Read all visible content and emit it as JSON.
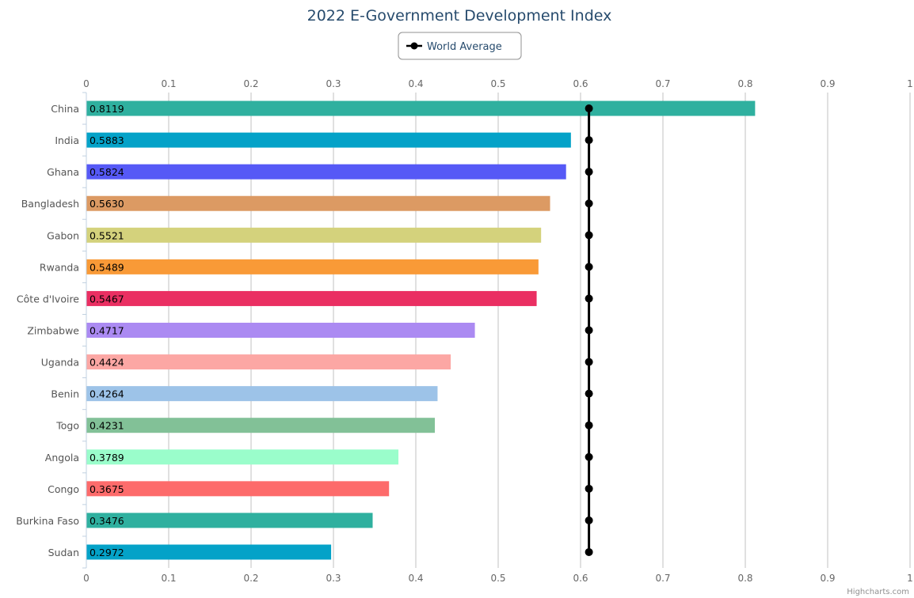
{
  "chart_data": {
    "type": "bar",
    "title": "2022 E-Government Development Index",
    "categories": [
      "China",
      "India",
      "Ghana",
      "Bangladesh",
      "Gabon",
      "Rwanda",
      "Côte d'Ivoire",
      "Zimbabwe",
      "Uganda",
      "Benin",
      "Togo",
      "Angola",
      "Congo",
      "Burkina Faso",
      "Sudan"
    ],
    "values": [
      0.8119,
      0.5883,
      0.5824,
      0.563,
      0.5521,
      0.5489,
      0.5467,
      0.4717,
      0.4424,
      0.4264,
      0.4231,
      0.3789,
      0.3675,
      0.3476,
      0.2972
    ],
    "data_labels": [
      "0.8119",
      "0.5883",
      "0.5824",
      "0.5630",
      "0.5521",
      "0.5489",
      "0.5467",
      "0.4717",
      "0.4424",
      "0.4264",
      "0.4231",
      "0.3789",
      "0.3675",
      "0.3476",
      "0.2972"
    ],
    "bar_colors": [
      "#2fb09f",
      "#04a2c8",
      "#5659f6",
      "#dc9a63",
      "#d4d27c",
      "#f99a37",
      "#ea2f62",
      "#ab8af2",
      "#fca7a4",
      "#9dc3e8",
      "#82c197",
      "#9afdcb",
      "#fd6b6b",
      "#2fb09f",
      "#04a2c8"
    ],
    "series": [
      {
        "name": "World Average",
        "type": "line",
        "value": 0.6102,
        "color": "#000000"
      }
    ],
    "xlim": [
      0,
      1
    ],
    "ticks": [
      "0",
      "0.1",
      "0.2",
      "0.3",
      "0.4",
      "0.5",
      "0.6",
      "0.7",
      "0.8",
      "0.9",
      "1"
    ],
    "tick_values": [
      0,
      0.1,
      0.2,
      0.3,
      0.4,
      0.5,
      0.6,
      0.7,
      0.8,
      0.9,
      1
    ],
    "grid": true,
    "legend_position": "top-center",
    "credits": "Highcharts.com"
  }
}
